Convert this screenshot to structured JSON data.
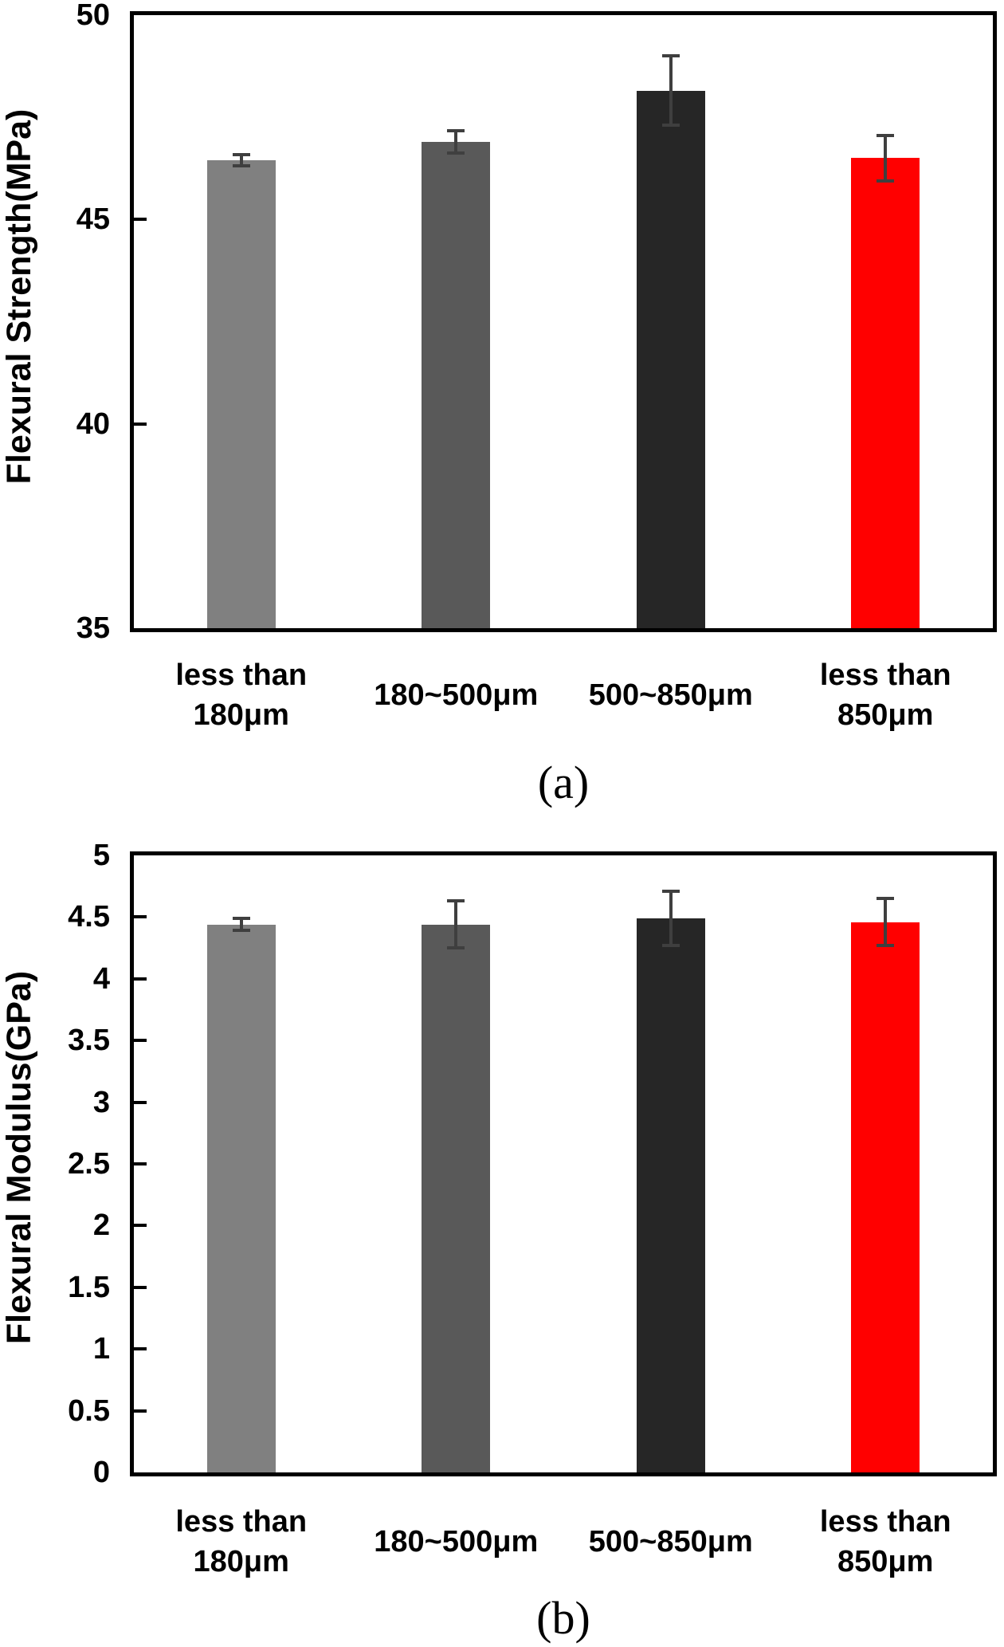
{
  "figure": {
    "caption_a": "(a)",
    "caption_b": "(b)"
  },
  "colors": {
    "bar_palette": [
      "#808080",
      "#595959",
      "#262626",
      "#ff0000"
    ],
    "error_bar": "#3f3f3f",
    "axis": "#000000",
    "background": "#ffffff"
  },
  "chart_data": [
    {
      "id": "a",
      "type": "bar",
      "title": "",
      "xlabel": "",
      "ylabel": "Flexural Strength(MPa)",
      "ylim": [
        35,
        50
      ],
      "yticks": [
        "35",
        "40",
        "45",
        "50"
      ],
      "grid": false,
      "legend": null,
      "categories": [
        [
          "less than",
          "180μm"
        ],
        [
          "180~500μm"
        ],
        [
          "500~850μm"
        ],
        [
          "less than",
          "850μm"
        ]
      ],
      "values": [
        46.45,
        46.9,
        48.15,
        46.5
      ],
      "errors": [
        0.13,
        0.28,
        0.85,
        0.55
      ],
      "bar_colors": [
        "#808080",
        "#595959",
        "#262626",
        "#ff0000"
      ],
      "caption": "(a)"
    },
    {
      "id": "b",
      "type": "bar",
      "title": "",
      "xlabel": "",
      "ylabel": "Flexural Modulus(GPa)",
      "ylim": [
        0,
        5
      ],
      "yticks": [
        "0",
        "0.5",
        "1",
        "1.5",
        "2",
        "2.5",
        "3",
        "3.5",
        "4",
        "4.5",
        "5"
      ],
      "grid": false,
      "legend": null,
      "categories": [
        [
          "less than",
          "180μm"
        ],
        [
          "180~500μm"
        ],
        [
          "500~850μm"
        ],
        [
          "less than",
          "850μm"
        ]
      ],
      "values": [
        4.44,
        4.44,
        4.49,
        4.46
      ],
      "errors": [
        0.05,
        0.19,
        0.22,
        0.19
      ],
      "bar_colors": [
        "#808080",
        "#595959",
        "#262626",
        "#ff0000"
      ],
      "caption": "(b)"
    }
  ]
}
